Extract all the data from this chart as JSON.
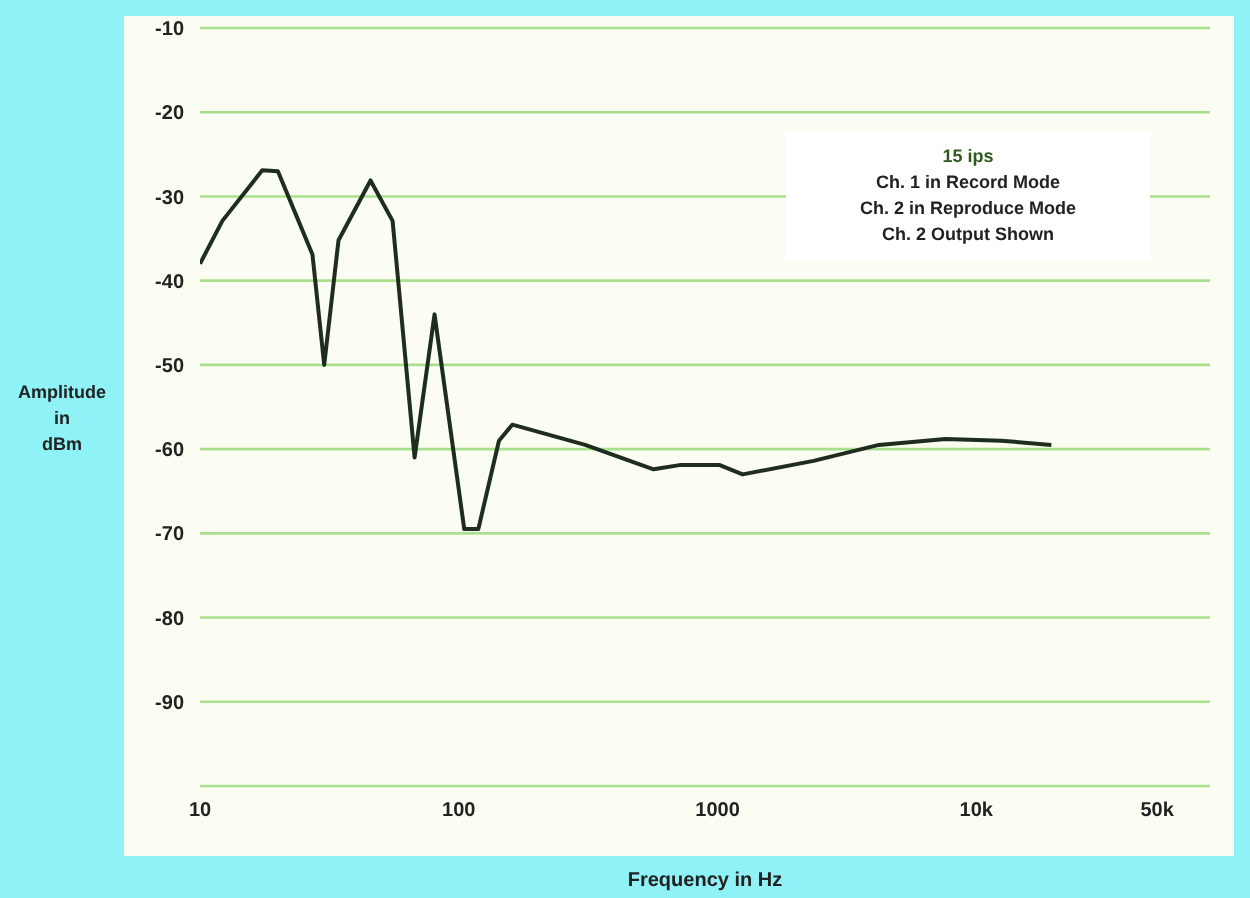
{
  "chart_data": {
    "type": "line",
    "xlabel": "Frequency in Hz",
    "ylabel": "Amplitude in dBm",
    "annotations": [
      "15 ips",
      "Ch. 1 in Record Mode",
      "Ch. 2 in Reproduce Mode",
      "Ch. 2 Output Shown"
    ],
    "x": [
      10,
      12.2,
      17.4,
      20,
      27.2,
      30.2,
      34.3,
      45.6,
      55.5,
      67.5,
      80.6,
      105,
      119,
      143,
      161,
      308,
      566,
      713,
      1020,
      1250,
      2350,
      4200,
      7600,
      12500,
      19500
    ],
    "series": [
      {
        "color": "#1f2d1f",
        "values": [
          -38,
          -32.9,
          -26.9,
          -27,
          -36.9,
          -50,
          -35.2,
          -28.1,
          -32.9,
          -61,
          -44,
          -69.5,
          -69.5,
          -59,
          -57.1,
          -59.5,
          -62.4,
          -61.9,
          -61.9,
          -63,
          -61.4,
          -59.5,
          -58.8,
          -59,
          -59.5
        ]
      }
    ],
    "log": "x",
    "xlim": [
      10,
      80000
    ],
    "xticks": [
      10,
      100,
      1000,
      {
        "value": 10000,
        "label": "10k"
      },
      {
        "value": 50000,
        "label": "50k"
      }
    ],
    "ylim": [
      -100,
      -10
    ],
    "yticks": [
      -10,
      -20,
      -30,
      -40,
      -50,
      -60,
      -70,
      -80,
      -90
    ],
    "grid": "y",
    "marker": "none",
    "line_style": "solid"
  }
}
